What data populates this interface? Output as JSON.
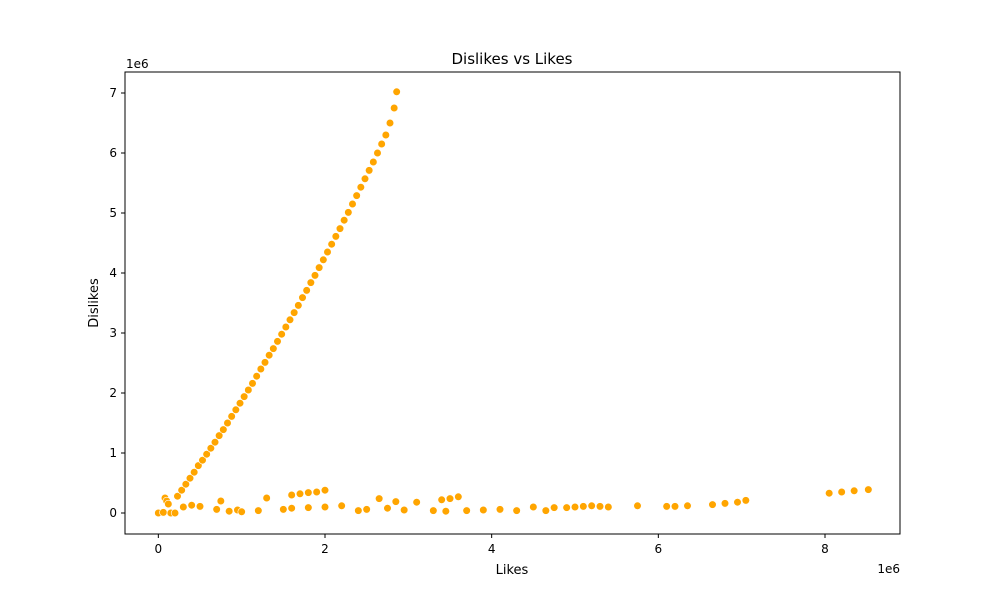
{
  "chart_data": {
    "type": "scatter",
    "title": "Dislikes vs Likes",
    "xlabel": "Likes",
    "ylabel": "Dislikes",
    "x_offset_text": "1e6",
    "y_offset_text": "1e6",
    "xlim": [
      -400000,
      8900000
    ],
    "ylim": [
      -350000,
      7350000
    ],
    "xticks": [
      0,
      2000000,
      4000000,
      6000000,
      8000000
    ],
    "xtick_labels": [
      "0",
      "2",
      "4",
      "6",
      "8"
    ],
    "yticks": [
      0,
      1000000,
      2000000,
      3000000,
      4000000,
      5000000,
      6000000,
      7000000
    ],
    "ytick_labels": [
      "0",
      "1",
      "2",
      "3",
      "4",
      "5",
      "6",
      "7"
    ],
    "grid": false,
    "marker_color": "#FFA500",
    "series": [
      {
        "values_description": "points",
        "points": [
          [
            0,
            0
          ],
          [
            60000,
            10000
          ],
          [
            80000,
            250000
          ],
          [
            100000,
            200000
          ],
          [
            120000,
            150000
          ],
          [
            150000,
            0
          ],
          [
            200000,
            0
          ],
          [
            230000,
            280000
          ],
          [
            280000,
            380000
          ],
          [
            330000,
            480000
          ],
          [
            380000,
            580000
          ],
          [
            430000,
            680000
          ],
          [
            480000,
            790000
          ],
          [
            530000,
            880000
          ],
          [
            580000,
            980000
          ],
          [
            630000,
            1080000
          ],
          [
            680000,
            1180000
          ],
          [
            730000,
            1290000
          ],
          [
            780000,
            1390000
          ],
          [
            830000,
            1500000
          ],
          [
            880000,
            1610000
          ],
          [
            930000,
            1720000
          ],
          [
            980000,
            1830000
          ],
          [
            1030000,
            1940000
          ],
          [
            1080000,
            2050000
          ],
          [
            1130000,
            2160000
          ],
          [
            1180000,
            2280000
          ],
          [
            1230000,
            2400000
          ],
          [
            1280000,
            2510000
          ],
          [
            1330000,
            2630000
          ],
          [
            1380000,
            2740000
          ],
          [
            1430000,
            2860000
          ],
          [
            1480000,
            2980000
          ],
          [
            1530000,
            3100000
          ],
          [
            1580000,
            3220000
          ],
          [
            1630000,
            3340000
          ],
          [
            1680000,
            3460000
          ],
          [
            1730000,
            3590000
          ],
          [
            1780000,
            3710000
          ],
          [
            1830000,
            3840000
          ],
          [
            1880000,
            3960000
          ],
          [
            1930000,
            4090000
          ],
          [
            1980000,
            4220000
          ],
          [
            2030000,
            4350000
          ],
          [
            2080000,
            4480000
          ],
          [
            2130000,
            4610000
          ],
          [
            2180000,
            4740000
          ],
          [
            2230000,
            4880000
          ],
          [
            2280000,
            5010000
          ],
          [
            2330000,
            5150000
          ],
          [
            2380000,
            5290000
          ],
          [
            2430000,
            5430000
          ],
          [
            2480000,
            5570000
          ],
          [
            2530000,
            5710000
          ],
          [
            2580000,
            5850000
          ],
          [
            2630000,
            6000000
          ],
          [
            2680000,
            6150000
          ],
          [
            2730000,
            6300000
          ],
          [
            2780000,
            6500000
          ],
          [
            2830000,
            6750000
          ],
          [
            2860000,
            7020000
          ],
          [
            300000,
            100000
          ],
          [
            400000,
            130000
          ],
          [
            500000,
            110000
          ],
          [
            700000,
            60000
          ],
          [
            750000,
            200000
          ],
          [
            850000,
            30000
          ],
          [
            950000,
            50000
          ],
          [
            1000000,
            20000
          ],
          [
            1200000,
            40000
          ],
          [
            1300000,
            250000
          ],
          [
            1500000,
            60000
          ],
          [
            1600000,
            300000
          ],
          [
            1700000,
            320000
          ],
          [
            1800000,
            340000
          ],
          [
            1900000,
            350000
          ],
          [
            2000000,
            380000
          ],
          [
            1600000,
            80000
          ],
          [
            1800000,
            90000
          ],
          [
            2000000,
            100000
          ],
          [
            2200000,
            120000
          ],
          [
            2400000,
            40000
          ],
          [
            2500000,
            60000
          ],
          [
            2650000,
            240000
          ],
          [
            2750000,
            80000
          ],
          [
            2850000,
            190000
          ],
          [
            2950000,
            50000
          ],
          [
            3100000,
            180000
          ],
          [
            3300000,
            40000
          ],
          [
            3400000,
            220000
          ],
          [
            3500000,
            240000
          ],
          [
            3600000,
            270000
          ],
          [
            3450000,
            30000
          ],
          [
            3700000,
            40000
          ],
          [
            3900000,
            50000
          ],
          [
            4100000,
            60000
          ],
          [
            4300000,
            40000
          ],
          [
            4500000,
            100000
          ],
          [
            4650000,
            40000
          ],
          [
            4750000,
            90000
          ],
          [
            4900000,
            90000
          ],
          [
            5000000,
            100000
          ],
          [
            5100000,
            110000
          ],
          [
            5200000,
            120000
          ],
          [
            5300000,
            110000
          ],
          [
            5400000,
            100000
          ],
          [
            5750000,
            120000
          ],
          [
            6100000,
            110000
          ],
          [
            6200000,
            110000
          ],
          [
            6350000,
            120000
          ],
          [
            6650000,
            140000
          ],
          [
            6800000,
            160000
          ],
          [
            6950000,
            180000
          ],
          [
            7050000,
            210000
          ],
          [
            8050000,
            330000
          ],
          [
            8200000,
            350000
          ],
          [
            8350000,
            370000
          ],
          [
            8520000,
            390000
          ]
        ]
      }
    ]
  }
}
